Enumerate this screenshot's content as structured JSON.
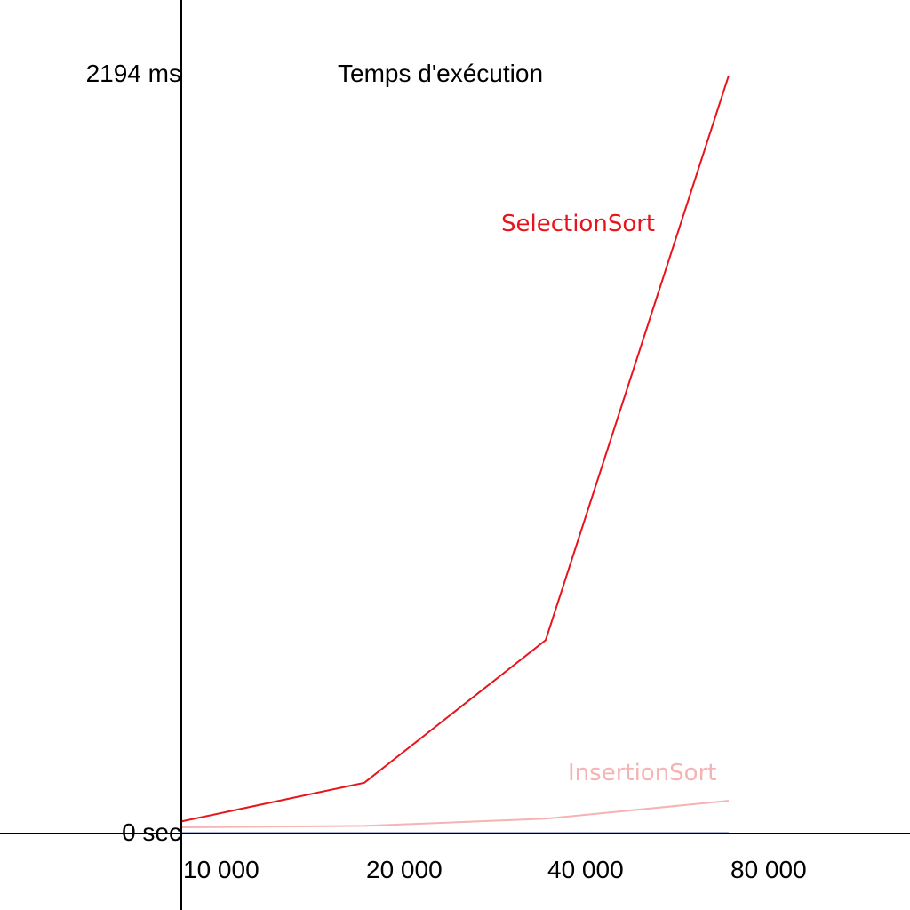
{
  "chart_data": {
    "type": "line",
    "title": "Temps d'exécution",
    "categories": [
      "10 000",
      "20 000",
      "40 000",
      "80 000"
    ],
    "y_max_label": "2194 ms",
    "y_min_label": "0 sec",
    "ylim": [
      0,
      2194
    ],
    "grid": false,
    "series": [
      {
        "name": "SelectionSort",
        "color": "#e8141c",
        "values": [
          35,
          147,
          560,
          2194
        ]
      },
      {
        "name": "InsertionSort",
        "color": "#f5b3b3",
        "values": [
          18,
          22,
          43,
          95
        ]
      },
      {
        "name": "",
        "color": "#1f3c8f",
        "values": [
          1,
          1,
          1,
          1
        ]
      },
      {
        "name": "",
        "color": "#1a6b2a",
        "values": [
          0,
          0,
          0,
          0
        ]
      }
    ]
  }
}
